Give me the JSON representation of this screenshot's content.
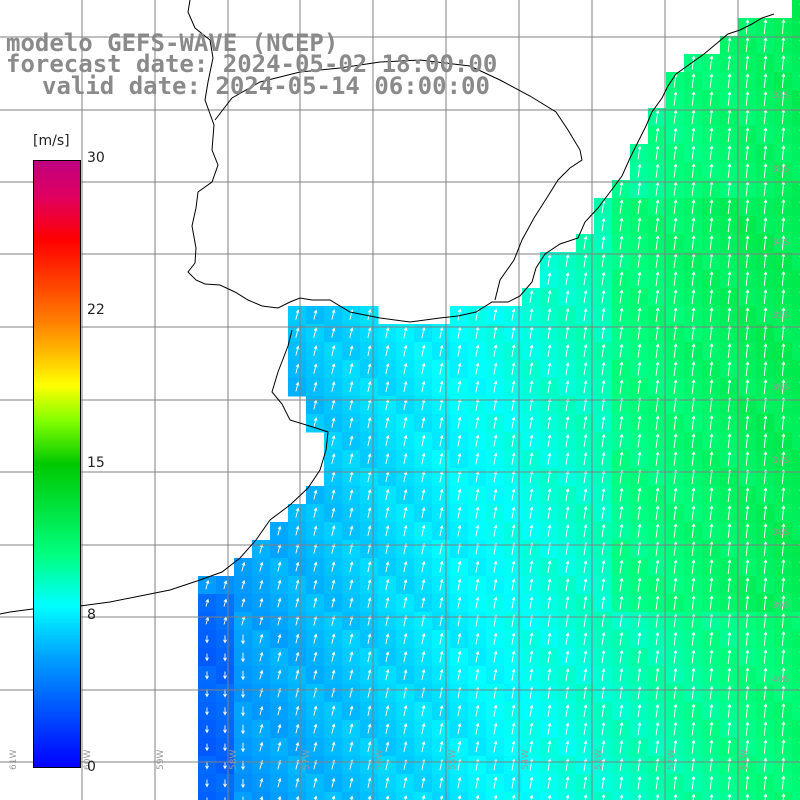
{
  "title": {
    "line1": "modelo GEFS-WAVE (NCEP)",
    "line2": "forecast date: 2024-05-02 18:00:00",
    "line3": "valid date: 2024-05-14 06:00:00"
  },
  "colorbar": {
    "unit": "[m/s]",
    "min": 0,
    "max": 30,
    "tick_labels": [
      "30",
      "22",
      "15",
      "8",
      "0"
    ],
    "tick_values": [
      30,
      22,
      15,
      8,
      0
    ],
    "colors": [
      "#0000ff",
      "#00a0ff",
      "#00ffff",
      "#00ff80",
      "#00c800",
      "#ffff00",
      "#ff8000",
      "#ff0000",
      "#c00080"
    ]
  },
  "map": {
    "lat_labels": [
      "32S",
      "33S",
      "34S",
      "35S",
      "36S",
      "37S",
      "38S",
      "39S",
      "40S"
    ],
    "lon_labels": [
      "61W",
      "60W",
      "59W",
      "58W",
      "57W",
      "56W",
      "55W",
      "54W",
      "53W",
      "52W",
      "51W"
    ],
    "ocean_wind_range": "approx 2–12 m/s"
  }
}
